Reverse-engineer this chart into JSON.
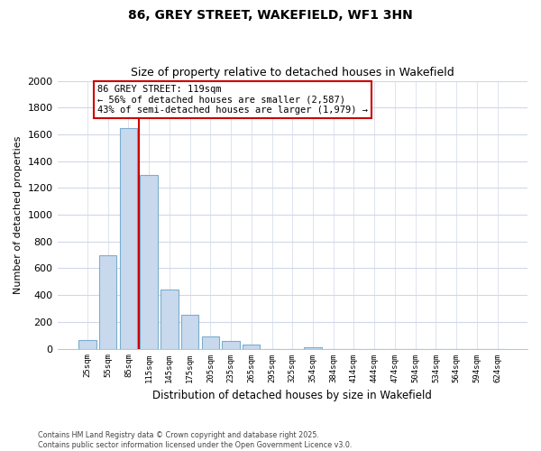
{
  "title": "86, GREY STREET, WAKEFIELD, WF1 3HN",
  "subtitle": "Size of property relative to detached houses in Wakefield",
  "xlabel": "Distribution of detached houses by size in Wakefield",
  "ylabel": "Number of detached properties",
  "bar_labels": [
    "25sqm",
    "55sqm",
    "85sqm",
    "115sqm",
    "145sqm",
    "175sqm",
    "205sqm",
    "235sqm",
    "265sqm",
    "295sqm",
    "325sqm",
    "354sqm",
    "384sqm",
    "414sqm",
    "444sqm",
    "474sqm",
    "504sqm",
    "534sqm",
    "564sqm",
    "594sqm",
    "624sqm"
  ],
  "bar_values": [
    65,
    700,
    1650,
    1300,
    440,
    255,
    90,
    55,
    30,
    0,
    0,
    10,
    0,
    0,
    0,
    0,
    0,
    0,
    0,
    0,
    0
  ],
  "bar_color": "#c8d9ee",
  "bar_edge_color": "#7aaecc",
  "vline_color": "#cc0000",
  "ylim": [
    0,
    2000
  ],
  "yticks": [
    0,
    200,
    400,
    600,
    800,
    1000,
    1200,
    1400,
    1600,
    1800,
    2000
  ],
  "annotation_text": "86 GREY STREET: 119sqm\n← 56% of detached houses are smaller (2,587)\n43% of semi-detached houses are larger (1,979) →",
  "annotation_box_color": "#ffffff",
  "annotation_box_edge": "#cc0000",
  "footer_line1": "Contains HM Land Registry data © Crown copyright and database right 2025.",
  "footer_line2": "Contains public sector information licensed under the Open Government Licence v3.0.",
  "bg_color": "#ffffff",
  "grid_color": "#d0d8e8",
  "vline_bar_index": 3
}
